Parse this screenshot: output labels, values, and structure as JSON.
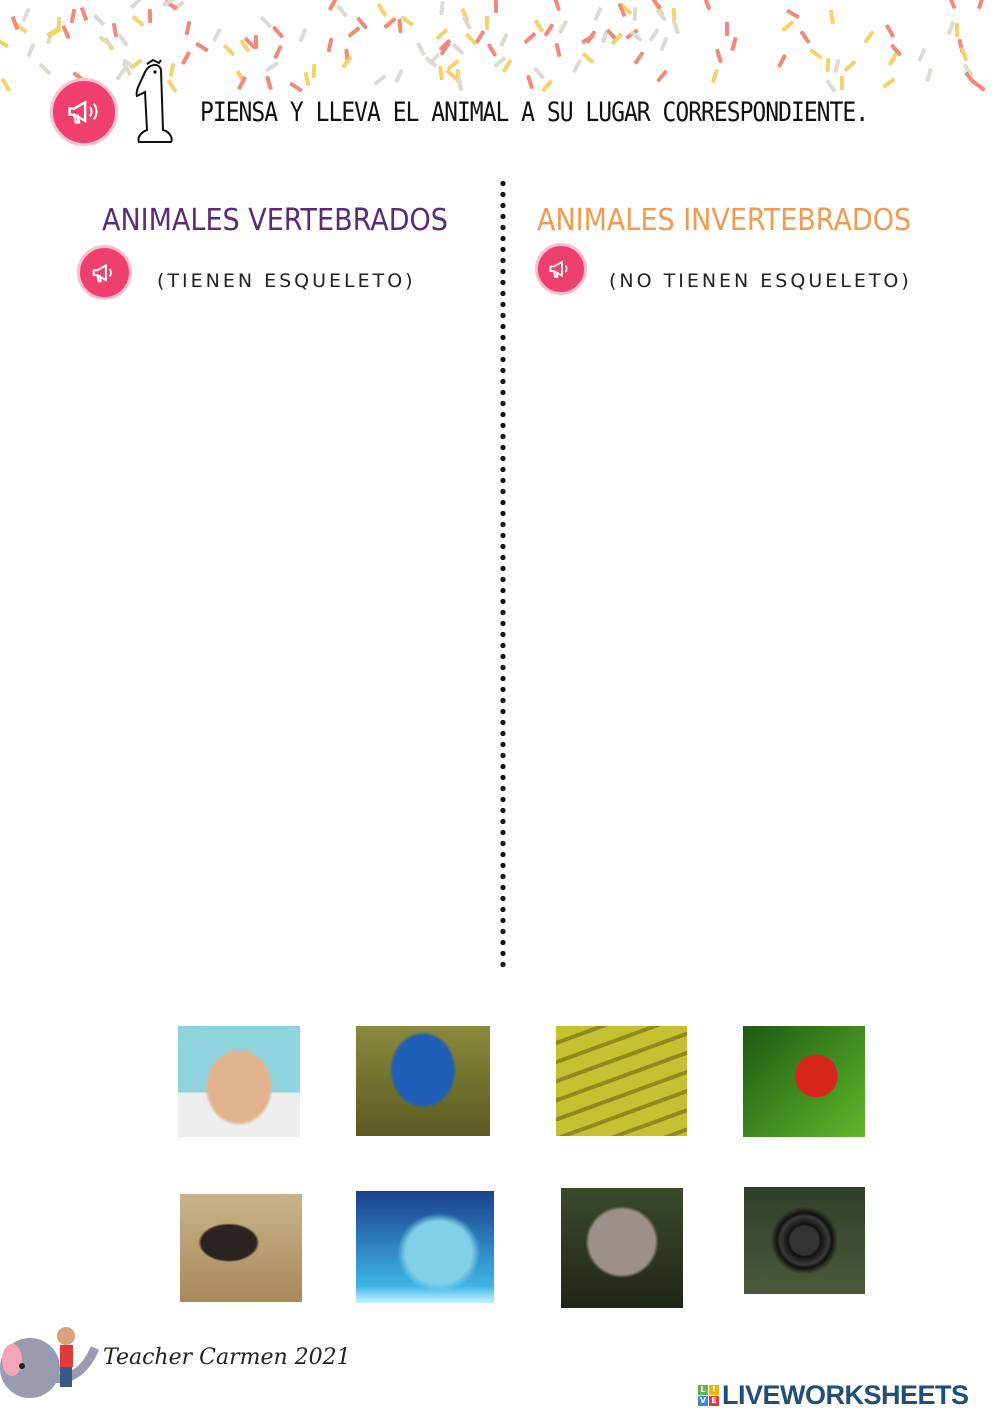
{
  "instruction": "PIENSA Y LLEVA EL ANIMAL A SU LUGAR CORRESPONDIENTE.",
  "number": "1",
  "columns": [
    {
      "title": "ANIMALES VERTEBRADOS",
      "subtitle": "(TIENEN ESQUELETO)",
      "color": "#5b2a78"
    },
    {
      "title": "ANIMALES INVERTEBRADOS",
      "subtitle": "(NO TIENEN ESQUELETO)",
      "color": "#f39a4f"
    }
  ],
  "accent": "#ef3f6f",
  "footer": {
    "signature": "Teacher Carmen 2021",
    "brand": "LIVEWORKSHEETS",
    "brand_letters": [
      "L",
      "I",
      "V",
      "E"
    ]
  }
}
